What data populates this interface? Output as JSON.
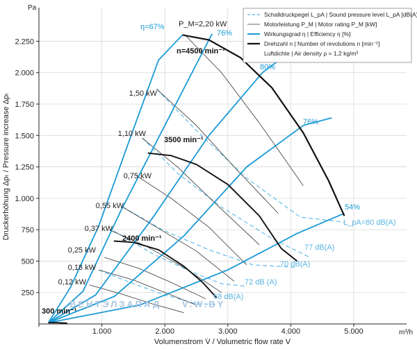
{
  "chart_data": {
    "type": "line",
    "title": "",
    "x_unit": "m³/h",
    "y_unit": "Pa",
    "xlabel": "Volumenstrom V̇ / Volumetric flow rate V",
    "ylabel": "Druckerhöhung Δpₜ / Pressure increase Δpₜ",
    "xlim": [
      0,
      5500
    ],
    "ylim": [
      0,
      2500
    ],
    "x_ticks": [
      0,
      1000,
      2000,
      3000,
      4000,
      5000
    ],
    "x_tick_labels": [
      "",
      "1.000",
      "2.000",
      "3.000",
      "4.000",
      "5.000"
    ],
    "y_ticks": [
      250,
      500,
      750,
      1000,
      1250,
      1500,
      1750,
      2000,
      2250
    ],
    "y_tick_labels": [
      "250",
      "500",
      "750",
      "1.000",
      "1.250",
      "1.500",
      "1.750",
      "2.000",
      "2.250"
    ],
    "legend": {
      "placement": "top-right",
      "items": [
        {
          "key": "spl",
          "style": "dashed-lightblue",
          "text": "Schalldruckpegel L_pA | Sound pressure level L_pA [dB(A)]"
        },
        {
          "key": "motor",
          "style": "thin-black",
          "text": "Motorleistung P_M | Motor rating P_M [kW]"
        },
        {
          "key": "eff",
          "style": "blue",
          "text": "Wirkungsgrad η | Efficiency η [%]"
        },
        {
          "key": "speed",
          "style": "thick-black",
          "text": "Drehzahl n | Number of revolutions n [min⁻¹]"
        },
        {
          "key": "density",
          "style": "none",
          "text": "Luftdichte | Air density ρ = 1,2 kg/m³"
        }
      ]
    },
    "speed_curves": [
      {
        "name": "n=4500 min⁻¹",
        "label": "n=4500 min⁻¹",
        "points": [
          [
            2280,
            2300
          ],
          [
            2700,
            2260
          ],
          [
            3200,
            2120
          ],
          [
            3700,
            1880
          ],
          [
            4200,
            1520
          ],
          [
            4600,
            1140
          ],
          [
            4850,
            860
          ]
        ]
      },
      {
        "name": "3500 min⁻¹",
        "label": "3500 min⁻¹",
        "points": [
          [
            1730,
            1360
          ],
          [
            2100,
            1340
          ],
          [
            2500,
            1270
          ],
          [
            3000,
            1110
          ],
          [
            3500,
            860
          ],
          [
            3850,
            600
          ],
          [
            4100,
            500
          ]
        ]
      },
      {
        "name": "2400 min⁻¹",
        "label": "2400 min⁻¹",
        "points": [
          [
            1190,
            660
          ],
          [
            1500,
            650
          ],
          [
            1900,
            590
          ],
          [
            2300,
            460
          ],
          [
            2600,
            330
          ],
          [
            2820,
            210
          ]
        ]
      },
      {
        "name": "300 min⁻¹",
        "label": "300 min⁻¹",
        "points": [
          [
            150,
            10
          ],
          [
            300,
            10
          ],
          [
            450,
            6
          ]
        ]
      }
    ],
    "efficiency_curves": [
      {
        "name": "η=67%",
        "label": "η=67%",
        "points": [
          [
            150,
            10
          ],
          [
            500,
            290
          ],
          [
            950,
            780
          ],
          [
            1400,
            1410
          ],
          [
            1900,
            2100
          ],
          [
            2280,
            2300
          ]
        ]
      },
      {
        "name": "76%",
        "label": "76%",
        "points": [
          [
            150,
            10
          ],
          [
            700,
            260
          ],
          [
            1300,
            900
          ],
          [
            2000,
            1580
          ],
          [
            2750,
            2310
          ]
        ]
      },
      {
        "name": "80%",
        "label": "80%",
        "points": [
          [
            150,
            10
          ],
          [
            900,
            230
          ],
          [
            1800,
            840
          ],
          [
            2700,
            1500
          ],
          [
            3550,
            2000
          ],
          [
            3950,
            2150
          ]
        ]
      },
      {
        "name": "76%",
        "label": "76%",
        "points": [
          [
            150,
            10
          ],
          [
            1200,
            220
          ],
          [
            2300,
            700
          ],
          [
            3300,
            1250
          ],
          [
            4200,
            1580
          ],
          [
            4650,
            1640
          ]
        ]
      },
      {
        "name": "54%",
        "label": "54%",
        "points": [
          [
            150,
            10
          ],
          [
            1600,
            150
          ],
          [
            3000,
            430
          ],
          [
            4100,
            720
          ],
          [
            4850,
            880
          ]
        ]
      }
    ],
    "motor_power_lines": [
      {
        "label": "P_M=2,20 kW",
        "points": [
          [
            2320,
            2300
          ],
          [
            2900,
            2000
          ],
          [
            3500,
            1600
          ],
          [
            4200,
            1100
          ]
        ]
      },
      {
        "label": "1,50 kW",
        "points": [
          [
            1870,
            1870
          ],
          [
            2500,
            1580
          ],
          [
            3100,
            1250
          ],
          [
            3800,
            880
          ]
        ]
      },
      {
        "label": "1,10 kW",
        "points": [
          [
            1640,
            1480
          ],
          [
            2200,
            1250
          ],
          [
            2800,
            960
          ],
          [
            3500,
            630
          ]
        ]
      },
      {
        "label": "0,75 kW",
        "points": [
          [
            1550,
            1180
          ],
          [
            2100,
            1000
          ],
          [
            2700,
            770
          ],
          [
            3300,
            470
          ]
        ]
      },
      {
        "label": "0,55 kW",
        "points": [
          [
            1330,
            930
          ],
          [
            1900,
            760
          ],
          [
            2500,
            580
          ],
          [
            3100,
            340
          ]
        ]
      },
      {
        "label": "0,37 kW",
        "points": [
          [
            1160,
            740
          ],
          [
            1700,
            620
          ],
          [
            2300,
            450
          ],
          [
            2900,
            250
          ]
        ]
      },
      {
        "label": "0,25 kW",
        "points": [
          [
            1040,
            530
          ],
          [
            1600,
            440
          ],
          [
            2100,
            330
          ],
          [
            2650,
            200
          ]
        ]
      },
      {
        "label": "0,18 kW",
        "points": [
          [
            950,
            430
          ],
          [
            1500,
            350
          ],
          [
            2000,
            250
          ],
          [
            2500,
            150
          ]
        ]
      },
      {
        "label": "0,12 kW",
        "points": [
          [
            800,
            310
          ],
          [
            1300,
            240
          ],
          [
            1800,
            160
          ],
          [
            2300,
            90
          ]
        ]
      }
    ],
    "sound_lines": [
      {
        "label": "L_pA=80 dB(A)",
        "points": [
          [
            1870,
            1870
          ],
          [
            2500,
            1540
          ],
          [
            3300,
            1160
          ],
          [
            4150,
            850
          ],
          [
            4850,
            810
          ]
        ]
      },
      {
        "label": "77 dB(A)",
        "points": [
          [
            1640,
            1480
          ],
          [
            2200,
            1200
          ],
          [
            2900,
            930
          ],
          [
            3700,
            680
          ],
          [
            4300,
            530
          ]
        ]
      },
      {
        "label": "72 dB (A)",
        "points": [
          [
            1190,
            740
          ],
          [
            1800,
            560
          ],
          [
            2400,
            420
          ],
          [
            2900,
            320
          ],
          [
            3300,
            300
          ]
        ]
      },
      {
        "label": "70 dB(A)",
        "points": [
          [
            1330,
            930
          ],
          [
            2000,
            740
          ],
          [
            2700,
            590
          ],
          [
            3400,
            470
          ],
          [
            4100,
            450
          ]
        ]
      },
      {
        "label": "68 dB(A)",
        "points": [
          [
            950,
            430
          ],
          [
            1500,
            320
          ],
          [
            2000,
            230
          ],
          [
            2500,
            160
          ],
          [
            2850,
            155
          ]
        ]
      }
    ],
    "watermark_left": "ВЕНТЭЛЗАПАД",
    "watermark_right": "V.W.BY"
  }
}
